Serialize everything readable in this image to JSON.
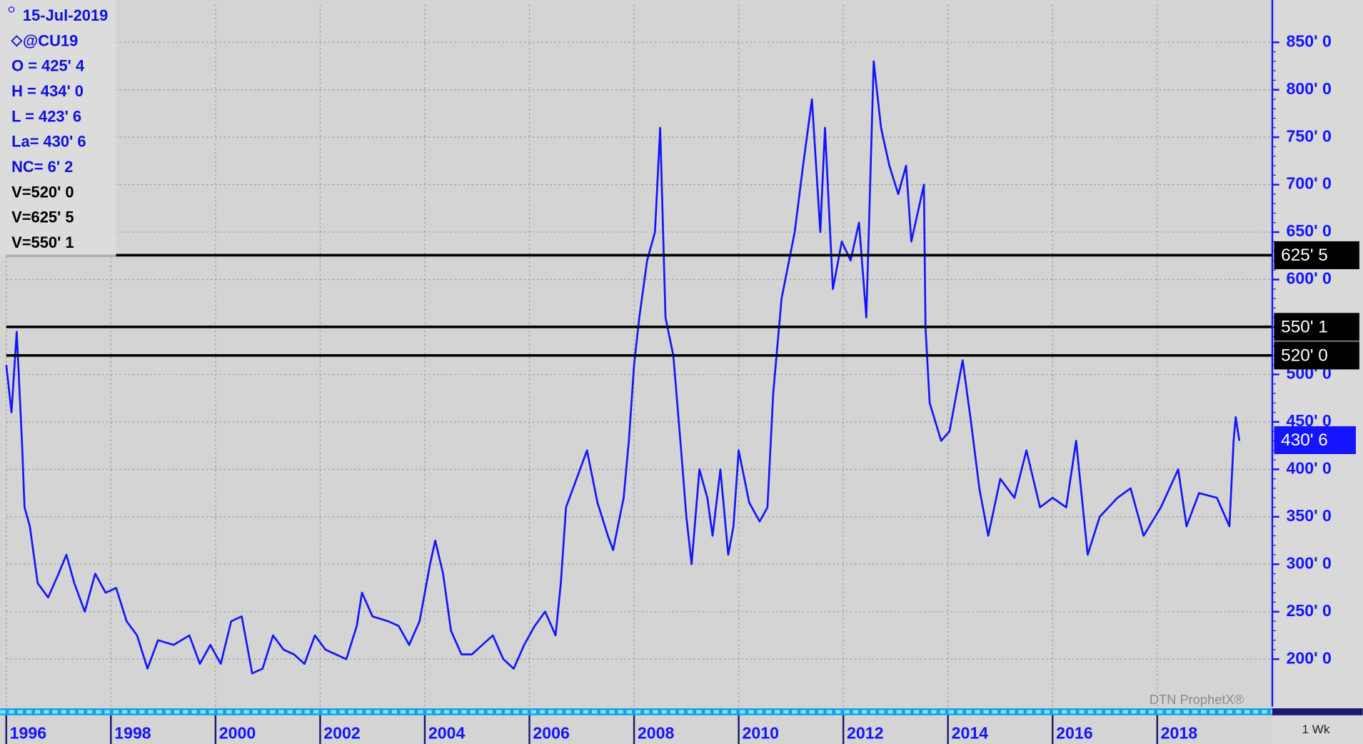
{
  "chart_data": {
    "type": "line",
    "info": [
      {
        "text": "15-Jul-2019",
        "color": "#1010e0"
      },
      {
        "text": "@CU19",
        "color": "#1010e0"
      },
      {
        "text": "O = 425' 4",
        "color": "#1010e0"
      },
      {
        "text": "H = 434' 0",
        "color": "#1010e0"
      },
      {
        "text": "L = 423' 6",
        "color": "#1010e0"
      },
      {
        "text": "La= 430' 6",
        "color": "#1010e0"
      },
      {
        "text": "NC= 6' 2",
        "color": "#1010e0"
      },
      {
        "text": "V=520' 0",
        "color": "#000000"
      },
      {
        "text": "V=625' 5",
        "color": "#000000"
      },
      {
        "text": "V=550' 1",
        "color": "#000000"
      }
    ],
    "watermark": "DTN ProphetX®",
    "interval": "1 Wk",
    "xlim": [
      1996,
      2020.2
    ],
    "xticks": [
      1996,
      1998,
      2000,
      2002,
      2004,
      2006,
      2008,
      2010,
      2012,
      2014,
      2016,
      2018
    ],
    "ylim": [
      150,
      890
    ],
    "yticks": [
      {
        "value": 200,
        "label": "200' 0"
      },
      {
        "value": 250,
        "label": "250' 0"
      },
      {
        "value": 300,
        "label": "300' 0"
      },
      {
        "value": 350,
        "label": "350' 0"
      },
      {
        "value": 400,
        "label": "400' 0"
      },
      {
        "value": 450,
        "label": "450' 0"
      },
      {
        "value": 500,
        "label": "500' 0"
      },
      {
        "value": 550,
        "label": "550' 0"
      },
      {
        "value": 600,
        "label": "600' 0"
      },
      {
        "value": 650,
        "label": "650' 0"
      },
      {
        "value": 700,
        "label": "700' 0"
      },
      {
        "value": 750,
        "label": "750' 0"
      },
      {
        "value": 800,
        "label": "800' 0"
      },
      {
        "value": 850,
        "label": "850' 0"
      }
    ],
    "grid": true,
    "hlines": [
      {
        "value": 625.625,
        "label": "625' 5"
      },
      {
        "value": 550.125,
        "label": "550' 1"
      },
      {
        "value": 520,
        "label": "520' 0"
      }
    ],
    "last": {
      "value": 430.75,
      "label": "430' 6"
    },
    "x": [
      1996.0,
      1996.1,
      1996.2,
      1996.3,
      1996.35,
      1996.45,
      1996.6,
      1996.8,
      1997.0,
      1997.15,
      1997.3,
      1997.5,
      1997.7,
      1997.9,
      1998.1,
      1998.3,
      1998.5,
      1998.7,
      1998.9,
      1999.2,
      1999.5,
      1999.7,
      1999.9,
      2000.1,
      2000.3,
      2000.5,
      2000.7,
      2000.9,
      2001.1,
      2001.3,
      2001.5,
      2001.7,
      2001.9,
      2002.1,
      2002.3,
      2002.5,
      2002.7,
      2002.8,
      2003.0,
      2003.3,
      2003.5,
      2003.7,
      2003.9,
      2004.1,
      2004.2,
      2004.35,
      2004.5,
      2004.7,
      2004.9,
      2005.1,
      2005.3,
      2005.5,
      2005.7,
      2005.9,
      2006.1,
      2006.3,
      2006.5,
      2006.6,
      2006.7,
      2006.9,
      2007.1,
      2007.3,
      2007.5,
      2007.6,
      2007.8,
      2007.9,
      2008.0,
      2008.1,
      2008.25,
      2008.4,
      2008.5,
      2008.6,
      2008.75,
      2008.9,
      2009.0,
      2009.1,
      2009.25,
      2009.4,
      2009.5,
      2009.65,
      2009.8,
      2009.9,
      2010.0,
      2010.2,
      2010.4,
      2010.55,
      2010.66,
      2010.82,
      2011.07,
      2011.23,
      2011.4,
      2011.56,
      2011.65,
      2011.8,
      2011.97,
      2012.14,
      2012.3,
      2012.44,
      2012.58,
      2012.72,
      2012.88,
      2013.05,
      2013.2,
      2013.3,
      2013.46,
      2013.54,
      2013.57,
      2013.65,
      2013.87,
      2014.03,
      2014.28,
      2014.44,
      2014.6,
      2014.77,
      2015.0,
      2015.27,
      2015.5,
      2015.76,
      2016.0,
      2016.26,
      2016.45,
      2016.67,
      2016.9,
      2017.24,
      2017.49,
      2017.74,
      2018.07,
      2018.4,
      2018.56,
      2018.8,
      2019.14,
      2019.38,
      2019.46,
      2019.5,
      2019.57
    ],
    "series": [
      {
        "color": "#1414ff",
        "values": [
          510,
          460,
          545,
          430,
          360,
          340,
          280,
          265,
          290,
          310,
          280,
          250,
          290,
          270,
          275,
          240,
          225,
          190,
          220,
          215,
          225,
          195,
          215,
          195,
          240,
          245,
          185,
          190,
          225,
          210,
          205,
          195,
          225,
          210,
          205,
          200,
          235,
          270,
          245,
          240,
          235,
          215,
          240,
          300,
          325,
          290,
          230,
          205,
          205,
          215,
          225,
          200,
          190,
          215,
          235,
          250,
          225,
          280,
          360,
          390,
          420,
          365,
          330,
          315,
          370,
          430,
          510,
          560,
          620,
          650,
          760,
          560,
          520,
          420,
          350,
          300,
          400,
          370,
          330,
          400,
          310,
          340,
          420,
          365,
          345,
          360,
          480,
          580,
          650,
          720,
          790,
          650,
          760,
          590,
          640,
          620,
          660,
          560,
          830,
          760,
          720,
          690,
          720,
          640,
          680,
          700,
          550,
          470,
          430,
          440,
          515,
          450,
          380,
          330,
          390,
          370,
          420,
          360,
          370,
          360,
          430,
          310,
          350,
          370,
          380,
          330,
          360,
          400,
          340,
          375,
          370,
          340,
          430,
          455,
          430
        ]
      }
    ]
  }
}
